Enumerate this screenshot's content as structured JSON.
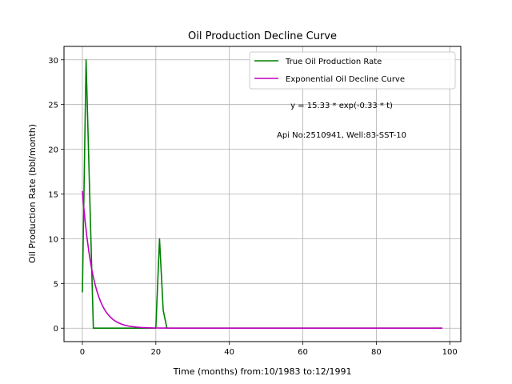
{
  "chart_data": {
    "type": "line",
    "title": "Oil Production Decline Curve",
    "xlabel": "Time (months) from:10/1983 to:12/1991",
    "ylabel": "Oil Production Rate (bbl/month)",
    "xlim": [
      -5,
      103
    ],
    "ylim": [
      -1.5,
      31.5
    ],
    "xticks": [
      0,
      20,
      40,
      60,
      80,
      100
    ],
    "yticks": [
      0,
      5,
      10,
      15,
      20,
      25,
      30
    ],
    "grid": true,
    "legend_position": "top-right",
    "annotations": [
      "y = 15.33 * exp(-0.33 * t)",
      "Api No:2510941, Well:83-SST-10"
    ],
    "series": [
      {
        "name": "True Oil Production Rate",
        "color": "#008000",
        "kind": "observed",
        "x": [
          0,
          1,
          2,
          3,
          4,
          5,
          6,
          7,
          8,
          9,
          10,
          11,
          12,
          13,
          14,
          15,
          16,
          17,
          18,
          19,
          20,
          21,
          22,
          23,
          24,
          30,
          40,
          50,
          60,
          70,
          80,
          90,
          98
        ],
        "y": [
          4,
          30,
          15,
          0,
          0,
          0,
          0,
          0,
          0,
          0,
          0,
          0,
          0,
          0,
          0,
          0,
          0,
          0,
          0,
          0,
          0,
          10,
          2,
          0,
          0,
          0,
          0,
          0,
          0,
          0,
          0,
          0,
          0
        ]
      },
      {
        "name": "Exponential Oil Decline Curve",
        "color": "#bf00bf",
        "kind": "model",
        "a": 15.33,
        "b": -0.33,
        "x_start": 0,
        "x_end": 98
      }
    ]
  }
}
